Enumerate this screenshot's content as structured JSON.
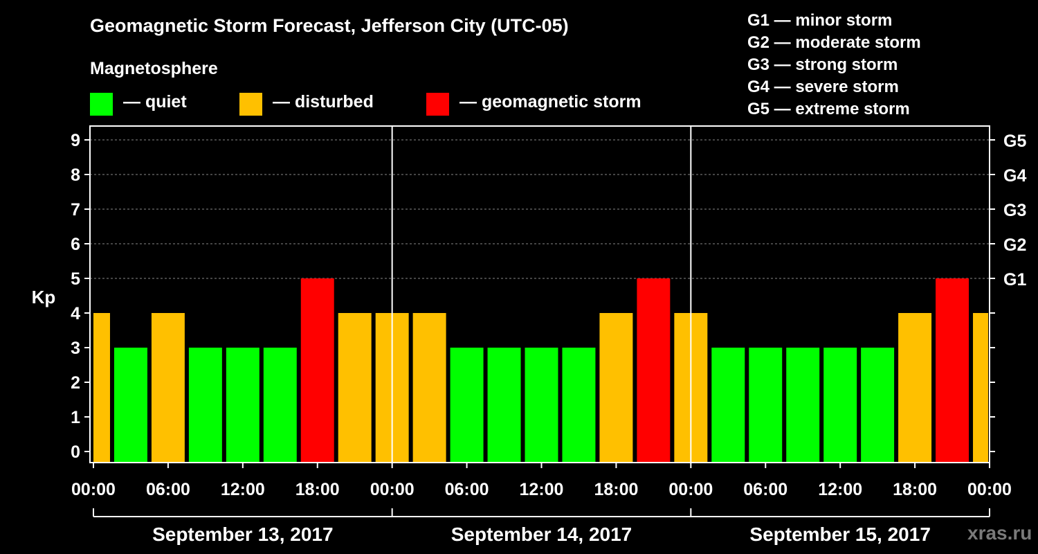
{
  "chart_data": {
    "type": "bar",
    "title": "Geomagnetic Storm Forecast, Jefferson City (UTC-05)",
    "ylabel": "Kp",
    "ylim": [
      0,
      9
    ],
    "yticks": [
      "0",
      "1",
      "2",
      "3",
      "4",
      "5",
      "6",
      "7",
      "8",
      "9"
    ],
    "right_axis_labels": [
      {
        "kp": 5,
        "label": "G1"
      },
      {
        "kp": 6,
        "label": "G2"
      },
      {
        "kp": 7,
        "label": "G3"
      },
      {
        "kp": 8,
        "label": "G4"
      },
      {
        "kp": 9,
        "label": "G5"
      }
    ],
    "xtick_labels": [
      "00:00",
      "06:00",
      "12:00",
      "18:00",
      "00:00",
      "06:00",
      "12:00",
      "18:00",
      "00:00",
      "06:00",
      "12:00",
      "18:00",
      "00:00"
    ],
    "days": [
      "September 13, 2017",
      "September 14, 2017",
      "September 15, 2017"
    ],
    "interval_hours": 3,
    "values": [
      4,
      3,
      4,
      3,
      3,
      3,
      5,
      4,
      4,
      4,
      3,
      3,
      3,
      3,
      4,
      5,
      4,
      3,
      3,
      3,
      3,
      3,
      4,
      5,
      4
    ],
    "first_bar_partial": true,
    "last_bar_partial": true
  },
  "legend": {
    "heading": "Magnetosphere",
    "items": [
      {
        "label": "— quiet",
        "color": "#00ff00"
      },
      {
        "label": "— disturbed",
        "color": "#ffc000"
      },
      {
        "label": "— geomagnetic storm",
        "color": "#ff0000"
      }
    ]
  },
  "g_scale": [
    "G1 — minor storm",
    "G2 — moderate storm",
    "G3 — strong storm",
    "G4 — severe storm",
    "G5 — extreme storm"
  ],
  "brand": "xras.ru"
}
